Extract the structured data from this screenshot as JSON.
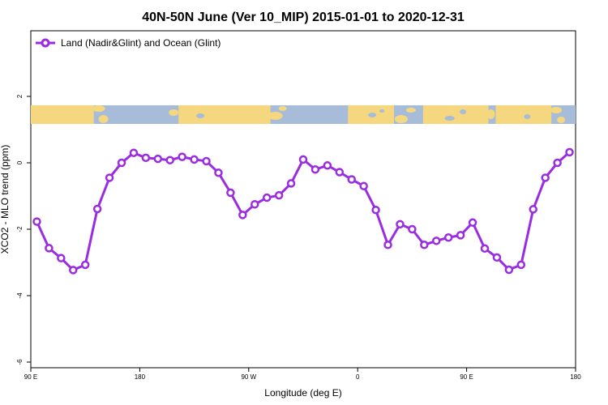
{
  "chart_data": {
    "type": "line",
    "title": "40N-50N June (Ver 10_MIP)   2015-01-01 to 2020-12-31",
    "xlabel": "Longitude (deg E)",
    "ylabel": "XCO2 - MLO trend (ppm)",
    "x_ticks": [
      {
        "value": 90,
        "label": "90 E"
      },
      {
        "value": 180,
        "label": "180"
      },
      {
        "value": 270,
        "label": "90 W"
      },
      {
        "value": 360,
        "label": "0"
      },
      {
        "value": 450,
        "label": "90 E"
      },
      {
        "value": 540,
        "label": "180"
      }
    ],
    "y_ticks": [
      -6,
      -4,
      -2,
      0,
      2
    ],
    "xlim": [
      90,
      540
    ],
    "ylim": [
      -6,
      4
    ],
    "grid": false,
    "legend_position": "top-left",
    "map_strip": {
      "land_color": "#f5d77f",
      "ocean_color": "#a7bcd9"
    },
    "series": [
      {
        "name": "Land (Nadir&Glint) and Ocean (Glint)",
        "color": "#9a2de0",
        "x": [
          95,
          105,
          115,
          125,
          135,
          145,
          155,
          165,
          175,
          185,
          195,
          205,
          215,
          225,
          235,
          245,
          255,
          265,
          275,
          285,
          295,
          305,
          315,
          325,
          335,
          345,
          355,
          365,
          375,
          385,
          395,
          405,
          415,
          425,
          435,
          445,
          455,
          465,
          475,
          485,
          495,
          505,
          515,
          525,
          535
        ],
        "y": [
          -1.77,
          -2.57,
          -2.87,
          -3.23,
          -3.07,
          -1.39,
          -0.45,
          0.0,
          0.3,
          0.15,
          0.12,
          0.08,
          0.18,
          0.1,
          0.05,
          -0.3,
          -0.9,
          -1.57,
          -1.25,
          -1.05,
          -0.98,
          -0.62,
          0.1,
          -0.2,
          -0.08,
          -0.28,
          -0.5,
          -0.7,
          -1.42,
          -2.47,
          -1.85,
          -2.0,
          -2.47,
          -2.35,
          -2.25,
          -2.18,
          -1.8,
          -2.58,
          -2.85,
          -3.22,
          -3.07,
          -1.4,
          -0.45,
          0.0,
          0.32
        ]
      }
    ]
  }
}
